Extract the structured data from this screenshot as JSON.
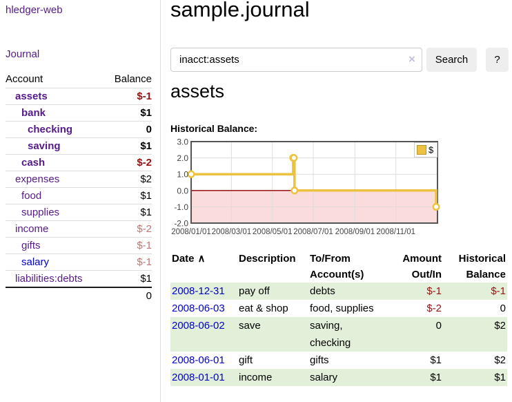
{
  "colors": {
    "link_purple": "#551a8b",
    "link_blue": "#0000cc",
    "negative_strong": "#961212",
    "negative_soft": "#bb7777",
    "row_stripe_green": "#e2f0da",
    "series_gold": "#edc240"
  },
  "sidebar": {
    "brand": "hledger-web",
    "journal_link": "Journal",
    "headers": {
      "account": "Account",
      "balance": "Balance"
    },
    "accounts": [
      {
        "name": "assets",
        "balance": "$-1"
      },
      {
        "name": "bank",
        "balance": "$1"
      },
      {
        "name": "checking",
        "balance": "0"
      },
      {
        "name": "saving",
        "balance": "$1"
      },
      {
        "name": "cash",
        "balance": "$-2"
      },
      {
        "name": "expenses",
        "balance": "$2"
      },
      {
        "name": "food",
        "balance": "$1"
      },
      {
        "name": "supplies",
        "balance": "$1"
      },
      {
        "name": "income",
        "balance": "$-2"
      },
      {
        "name": "gifts",
        "balance": "$-1"
      },
      {
        "name": "salary",
        "balance": "$-1"
      },
      {
        "name": "liabilities:debts",
        "balance": "$1"
      }
    ],
    "total": "0"
  },
  "header": {
    "title": "sample.journal"
  },
  "search": {
    "value": "inacct:assets",
    "clear_icon": "×",
    "button_label": "Search",
    "help_label": "?"
  },
  "account_page": {
    "title": "assets",
    "chart_heading": "Historical Balance:"
  },
  "chart_data": {
    "type": "line",
    "title": "Historical Balance",
    "step": true,
    "ylim": [
      -2,
      3
    ],
    "x_domain_days": [
      0,
      367
    ],
    "yticks": [
      {
        "label": "3.0",
        "value": 3
      },
      {
        "label": "2.0",
        "value": 2
      },
      {
        "label": "1.0",
        "value": 1
      },
      {
        "label": "0.0",
        "value": 0
      },
      {
        "label": "-1.0",
        "value": -1
      },
      {
        "label": "-2.0",
        "value": -2
      }
    ],
    "xticks": [
      {
        "label": "2008/01/01",
        "day": 0
      },
      {
        "label": "2008/03/01",
        "day": 60
      },
      {
        "label": "2008/05/01",
        "day": 121
      },
      {
        "label": "2008/07/01",
        "day": 182
      },
      {
        "label": "2008/09/01",
        "day": 244
      },
      {
        "label": "2008/11/01",
        "day": 305
      }
    ],
    "series": [
      {
        "name": "$",
        "color": "#edc240",
        "points": [
          {
            "date": "2008/01/01",
            "day": 0,
            "value": 1
          },
          {
            "date": "2008/06/01",
            "day": 152,
            "value": 2
          },
          {
            "date": "2008/06/02",
            "day": 153,
            "value": 2
          },
          {
            "date": "2008/06/03",
            "day": 154,
            "value": 0
          },
          {
            "date": "2008/12/31",
            "day": 365,
            "value": -1
          }
        ]
      }
    ],
    "legend_position": "top-right",
    "grid": true,
    "negative_region_color": "#fbdcdc",
    "zero_line_color": "#8b0000",
    "grid_color": "#dddddd",
    "border_color": "#545454"
  },
  "register": {
    "headers": {
      "date": "Date",
      "sort_icon": "∧",
      "description": "Description",
      "account": "To/From Account(s)",
      "amount": "Amount Out/In",
      "balance": "Historical Balance"
    },
    "rows": [
      {
        "date": "2008-12-31",
        "description": "pay off",
        "accounts": "debts",
        "amount": "$-1",
        "balance": "$-1"
      },
      {
        "date": "2008-06-03",
        "description": "eat & shop",
        "accounts": "food, supplies",
        "amount": "$-2",
        "balance": "0"
      },
      {
        "date": "2008-06-02",
        "description": "save",
        "accounts": "saving,\nchecking",
        "amount": "0",
        "balance": "$2"
      },
      {
        "date": "2008-06-01",
        "description": "gift",
        "accounts": "gifts",
        "amount": "$1",
        "balance": "$2"
      },
      {
        "date": "2008-01-01",
        "description": "income",
        "accounts": "salary",
        "amount": "$1",
        "balance": "$1"
      }
    ]
  }
}
